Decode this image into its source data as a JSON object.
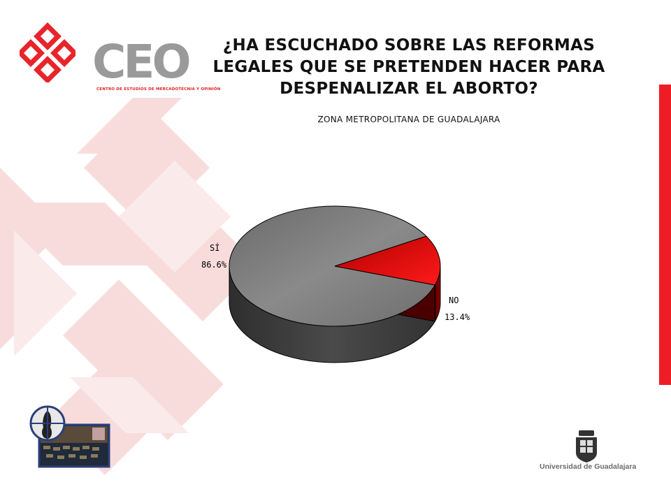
{
  "header": {
    "logo_text": "CEO",
    "logo_subtitle": "CENTRO DE ESTUDIOS DE MERCADOTECNIA Y OPINIÓN",
    "title_lines": [
      "¿HA ESCUCHADO SOBRE LAS REFORMAS",
      "LEGALES QUE SE PRETENDEN HACER PARA",
      "DESPENALIZAR EL ABORTO?"
    ],
    "subtitle": "ZONA METROPOLITANA DE GUADALAJARA"
  },
  "colors": {
    "accent_red": "#ee1c25",
    "slice_si": "#808080",
    "slice_no": "#e00000"
  },
  "chart_data": {
    "type": "pie",
    "style": "3d",
    "categories": [
      "SÍ",
      "NO"
    ],
    "values": [
      86.6,
      13.4
    ],
    "value_labels": [
      "86.6%",
      "13.4%"
    ]
  },
  "footer": {
    "university": "Universidad de Guadalajara"
  }
}
